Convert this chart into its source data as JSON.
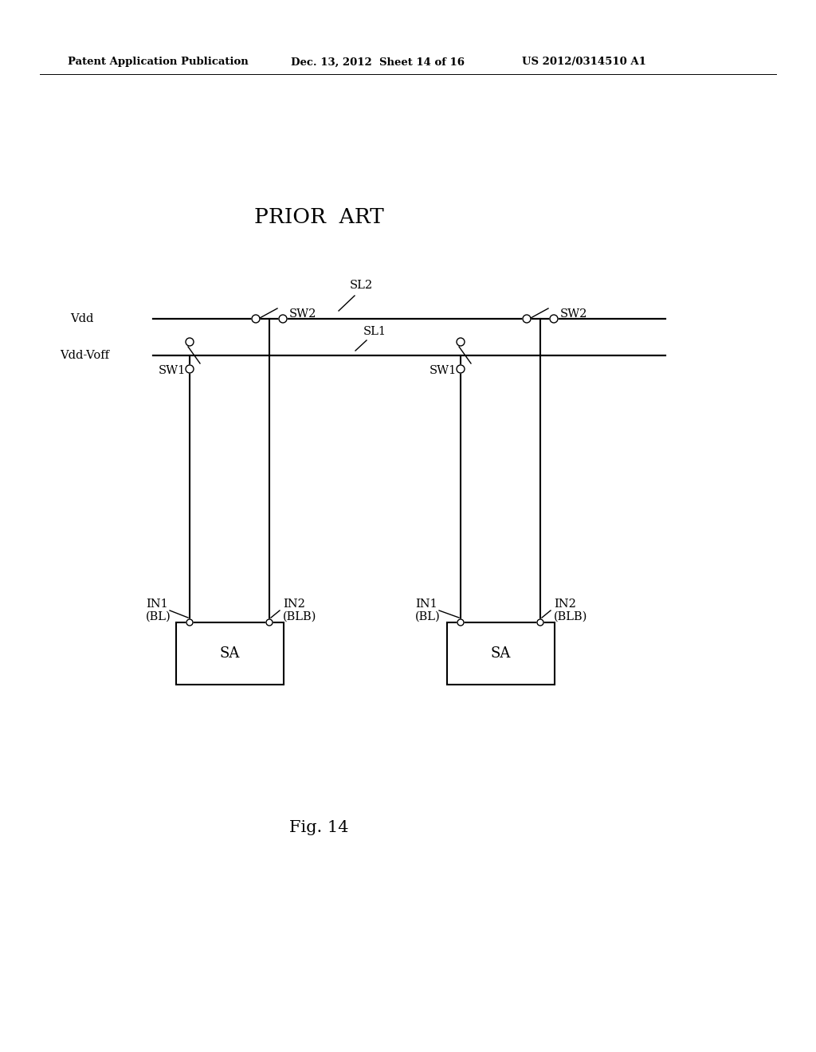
{
  "bg_color": "#ffffff",
  "header_left": "Patent Application Publication",
  "header_mid": "Dec. 13, 2012  Sheet 14 of 16",
  "header_right": "US 2012/0314510 A1",
  "prior_art_title": "PRIOR  ART",
  "fig_label": "Fig. 14",
  "vdd_label": "Vdd",
  "vddvoff_label": "Vdd-Voff",
  "sl2_label": "SL2",
  "sl1_label": "SL1",
  "sw1_label": "SW1",
  "sw2_label": "SW2",
  "sa_label": "SA",
  "in1_label": "IN1",
  "in1_sub": "(BL)",
  "in2_label": "IN2",
  "in2_sub": "(BLB)"
}
